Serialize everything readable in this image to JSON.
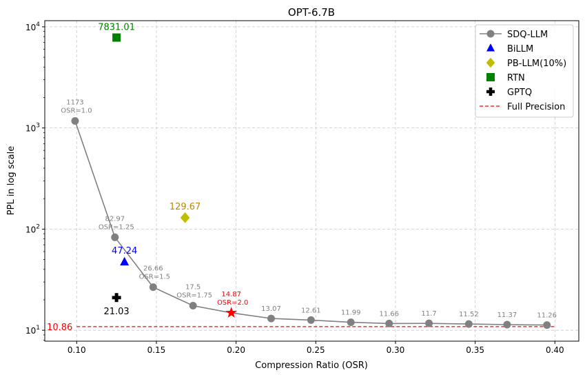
{
  "chart_data": {
    "type": "line",
    "title": "OPT-6.7B",
    "xlabel": "Compression Ratio (OSR)",
    "ylabel": "PPL in log scale",
    "xlim": [
      0.08,
      0.415
    ],
    "ylim": [
      7.8,
      11500
    ],
    "yscale": "log",
    "grid": true,
    "legend_position": "top-right",
    "x_ticks": [
      0.1,
      0.15,
      0.2,
      0.25,
      0.3,
      0.35,
      0.4
    ],
    "x_tick_labels": [
      "0.10",
      "0.15",
      "0.20",
      "0.25",
      "0.30",
      "0.35",
      "0.40"
    ],
    "y_ticks": [
      10,
      100,
      1000,
      10000
    ],
    "y_tick_labels": [
      {
        "base": "10",
        "exp": "1"
      },
      {
        "base": "10",
        "exp": "2"
      },
      {
        "base": "10",
        "exp": "3"
      },
      {
        "base": "10",
        "exp": "4"
      }
    ],
    "series": [
      {
        "name": "SDQ-LLM",
        "marker": "circle",
        "color": "#808080",
        "x": [
          0.099,
          0.124,
          0.148,
          0.173,
          0.197,
          0.222,
          0.247,
          0.272,
          0.296,
          0.321,
          0.346,
          0.37,
          0.395
        ],
        "y": [
          1173,
          82.97,
          26.66,
          17.5,
          14.87,
          13.07,
          12.61,
          11.99,
          11.66,
          11.7,
          11.52,
          11.37,
          11.26
        ],
        "labels": [
          "1173",
          "82.97",
          "26.66",
          "17.5",
          "14.87",
          "13.07",
          "12.61",
          "11.99",
          "11.66",
          "11.7",
          "11.52",
          "11.37",
          "11.26"
        ],
        "osr_labels": [
          "OSR=1.0",
          "OSR=1.25",
          "OSR=1.5",
          "OSR=1.75",
          "OSR=2.0",
          "",
          "",
          "",
          "",
          "",
          "",
          "",
          ""
        ],
        "highlight": {
          "index": 4,
          "marker": "star",
          "color": "#ff0000"
        }
      },
      {
        "name": "BiLLM",
        "marker": "triangle",
        "color": "#0000ff",
        "x": [
          0.13
        ],
        "y": [
          47.24
        ],
        "labels": [
          "47.24"
        ]
      },
      {
        "name": "PB-LLM(10%)",
        "marker": "diamond",
        "color": "#bfbf00",
        "label_color": "#b8860b",
        "x": [
          0.168
        ],
        "y": [
          129.67
        ],
        "labels": [
          "129.67"
        ]
      },
      {
        "name": "RTN",
        "marker": "square",
        "color": "#008000",
        "x": [
          0.125
        ],
        "y": [
          7831.01
        ],
        "labels": [
          "7831.01"
        ]
      },
      {
        "name": "GPTQ",
        "marker": "plus",
        "color": "#000000",
        "x": [
          0.125
        ],
        "y": [
          21.03
        ],
        "labels": [
          "21.03"
        ]
      }
    ],
    "reference_line": {
      "name": "Full Precision",
      "y": 10.86,
      "label": "10.86",
      "color": "#ff0000",
      "style": "dashed",
      "x_from": 0.1,
      "x_to": 0.4
    }
  }
}
